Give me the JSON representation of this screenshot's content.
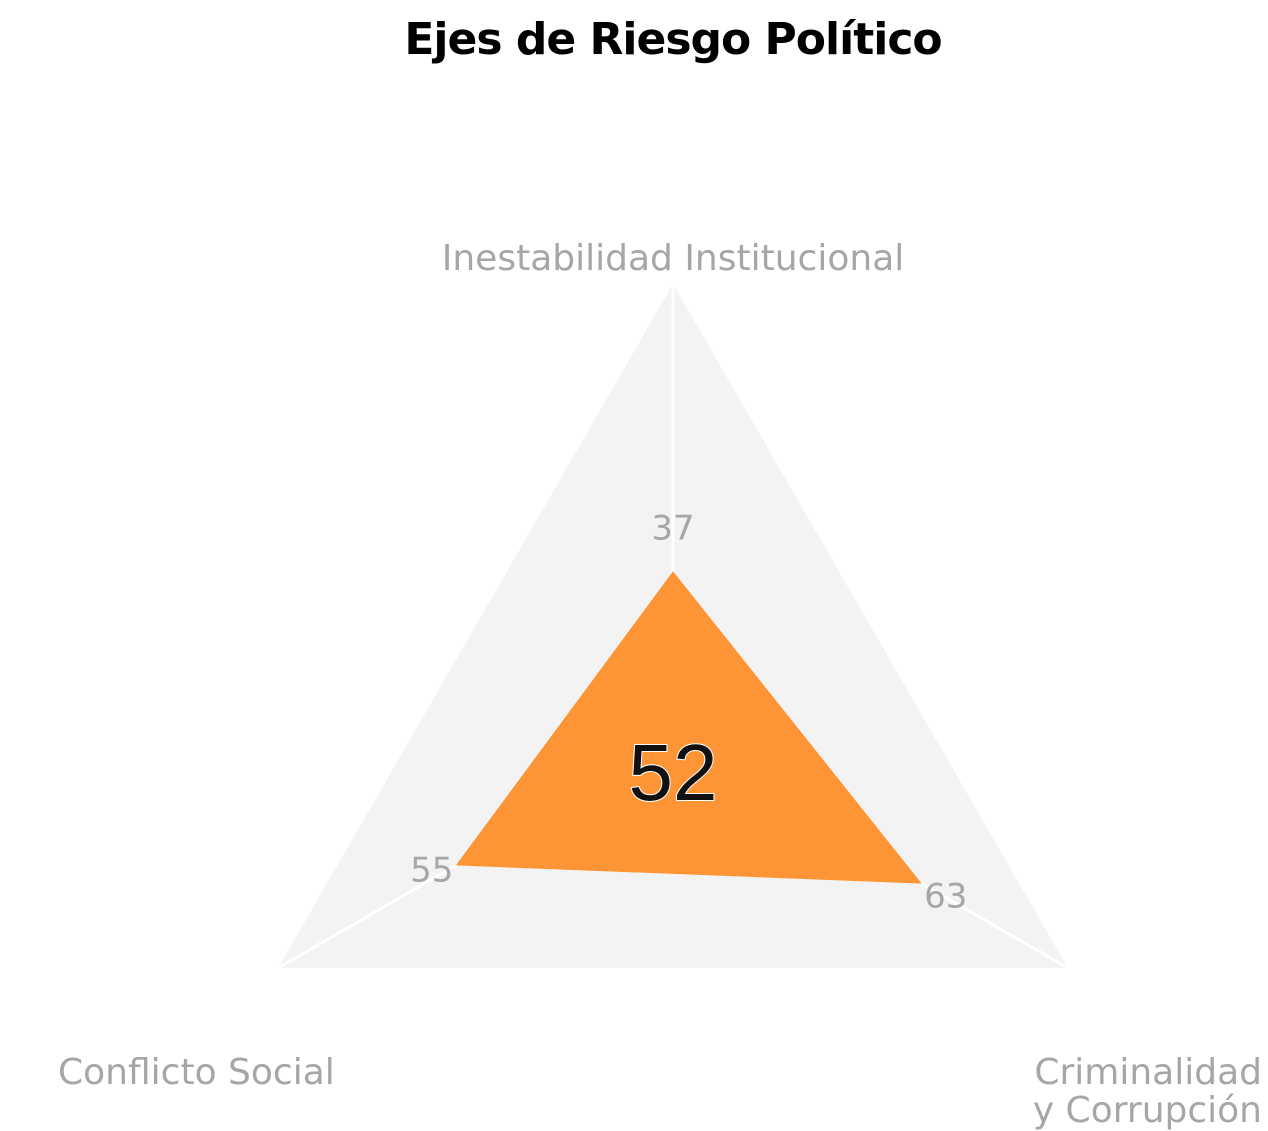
{
  "chart_data": {
    "type": "radar",
    "title": "Ejes de Riesgo Político",
    "axes": [
      {
        "id": "inst",
        "label_lines": [
          "Inestabilidad Institucional"
        ],
        "value": 37
      },
      {
        "id": "crim",
        "label_lines": [
          "Criminalidad",
          "y Corrupción"
        ],
        "value": 63
      },
      {
        "id": "soc",
        "label_lines": [
          "Conflicto Social"
        ],
        "value": 55
      }
    ],
    "center_value": "52",
    "range": [
      0,
      100
    ],
    "colors": {
      "fill": "#fd9536",
      "background": "#f3f3f3",
      "axis_line": "#ffffff",
      "label": "#a6a6a6",
      "title": "#000000"
    }
  }
}
